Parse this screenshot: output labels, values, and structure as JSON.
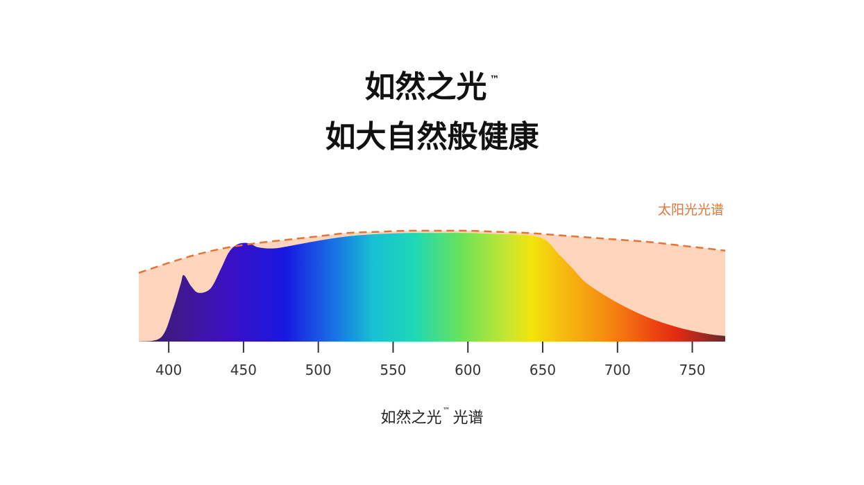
{
  "title": {
    "line1": "如然之光",
    "trademark": "™",
    "line2": "如大自然般健康"
  },
  "caption": {
    "name": "如然之光",
    "trademark": "™",
    "suffix": "光谱"
  },
  "chart_data": {
    "type": "area",
    "xlabel": "",
    "ylabel": "",
    "xlim": [
      380,
      772
    ],
    "ylim": [
      0,
      1
    ],
    "xticks": [
      400,
      450,
      500,
      550,
      600,
      650,
      700,
      750
    ],
    "grid": false,
    "series": [
      {
        "name": "太阳光光谱",
        "style": "dashed-outline-filled",
        "color": "#e0743a",
        "fill": "#fdd5bb",
        "x": [
          380,
          400,
          420,
          440,
          460,
          480,
          500,
          520,
          540,
          560,
          580,
          600,
          620,
          640,
          660,
          680,
          700,
          720,
          740,
          760,
          772
        ],
        "y": [
          0.62,
          0.71,
          0.79,
          0.85,
          0.89,
          0.92,
          0.95,
          0.98,
          0.99,
          1.0,
          1.0,
          1.0,
          0.99,
          0.98,
          0.96,
          0.94,
          0.92,
          0.9,
          0.87,
          0.84,
          0.82
        ]
      },
      {
        "name": "",
        "style": "spectrum-gradient",
        "x": [
          380,
          395,
          403,
          408,
          410,
          415,
          420,
          428,
          435,
          440,
          445,
          450,
          455,
          460,
          470,
          480,
          500,
          520,
          540,
          560,
          580,
          600,
          620,
          640,
          650,
          655,
          660,
          670,
          680,
          700,
          720,
          740,
          760,
          772
        ],
        "y": [
          0.0,
          0.04,
          0.3,
          0.52,
          0.6,
          0.5,
          0.44,
          0.48,
          0.66,
          0.8,
          0.87,
          0.89,
          0.88,
          0.85,
          0.84,
          0.86,
          0.91,
          0.95,
          0.97,
          0.98,
          0.98,
          0.98,
          0.97,
          0.96,
          0.93,
          0.88,
          0.8,
          0.66,
          0.52,
          0.35,
          0.22,
          0.13,
          0.07,
          0.05
        ]
      }
    ]
  }
}
